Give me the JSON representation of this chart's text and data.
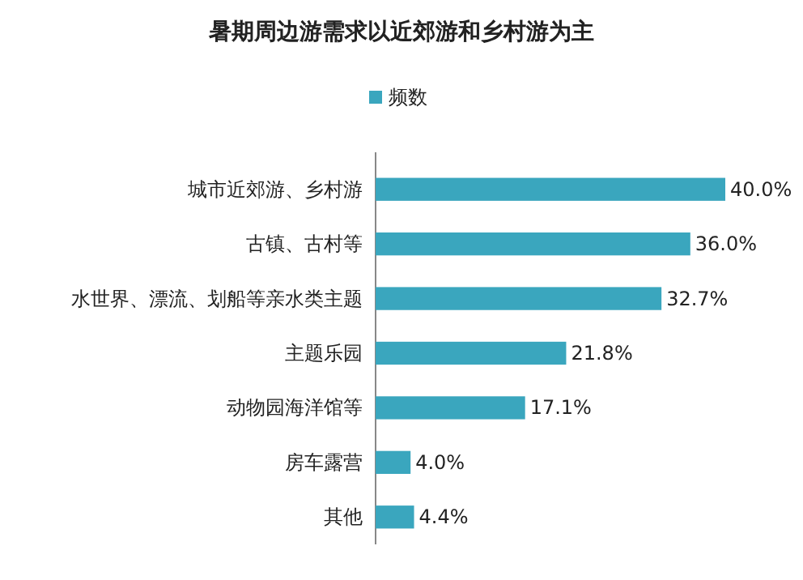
{
  "chart_data": {
    "type": "bar",
    "orientation": "horizontal",
    "title": "暑期周边游需求以近郊游和乡村游为主",
    "categories": [
      "城市近郊游、乡村游",
      "古镇、古村等",
      "水世界、漂流、划船等亲水类主题",
      "主题乐园",
      "动物园海洋馆等",
      "房车露营",
      "其他"
    ],
    "series": [
      {
        "name": "频数",
        "color": "#3aa6be",
        "values": [
          40.0,
          36.0,
          32.7,
          21.8,
          17.1,
          4.0,
          4.4
        ],
        "value_labels": [
          "40.0%",
          "36.0%",
          "32.7%",
          "21.8%",
          "17.1%",
          "4.0%",
          "4.4%"
        ]
      }
    ],
    "data_labels": true,
    "legend": "top"
  }
}
